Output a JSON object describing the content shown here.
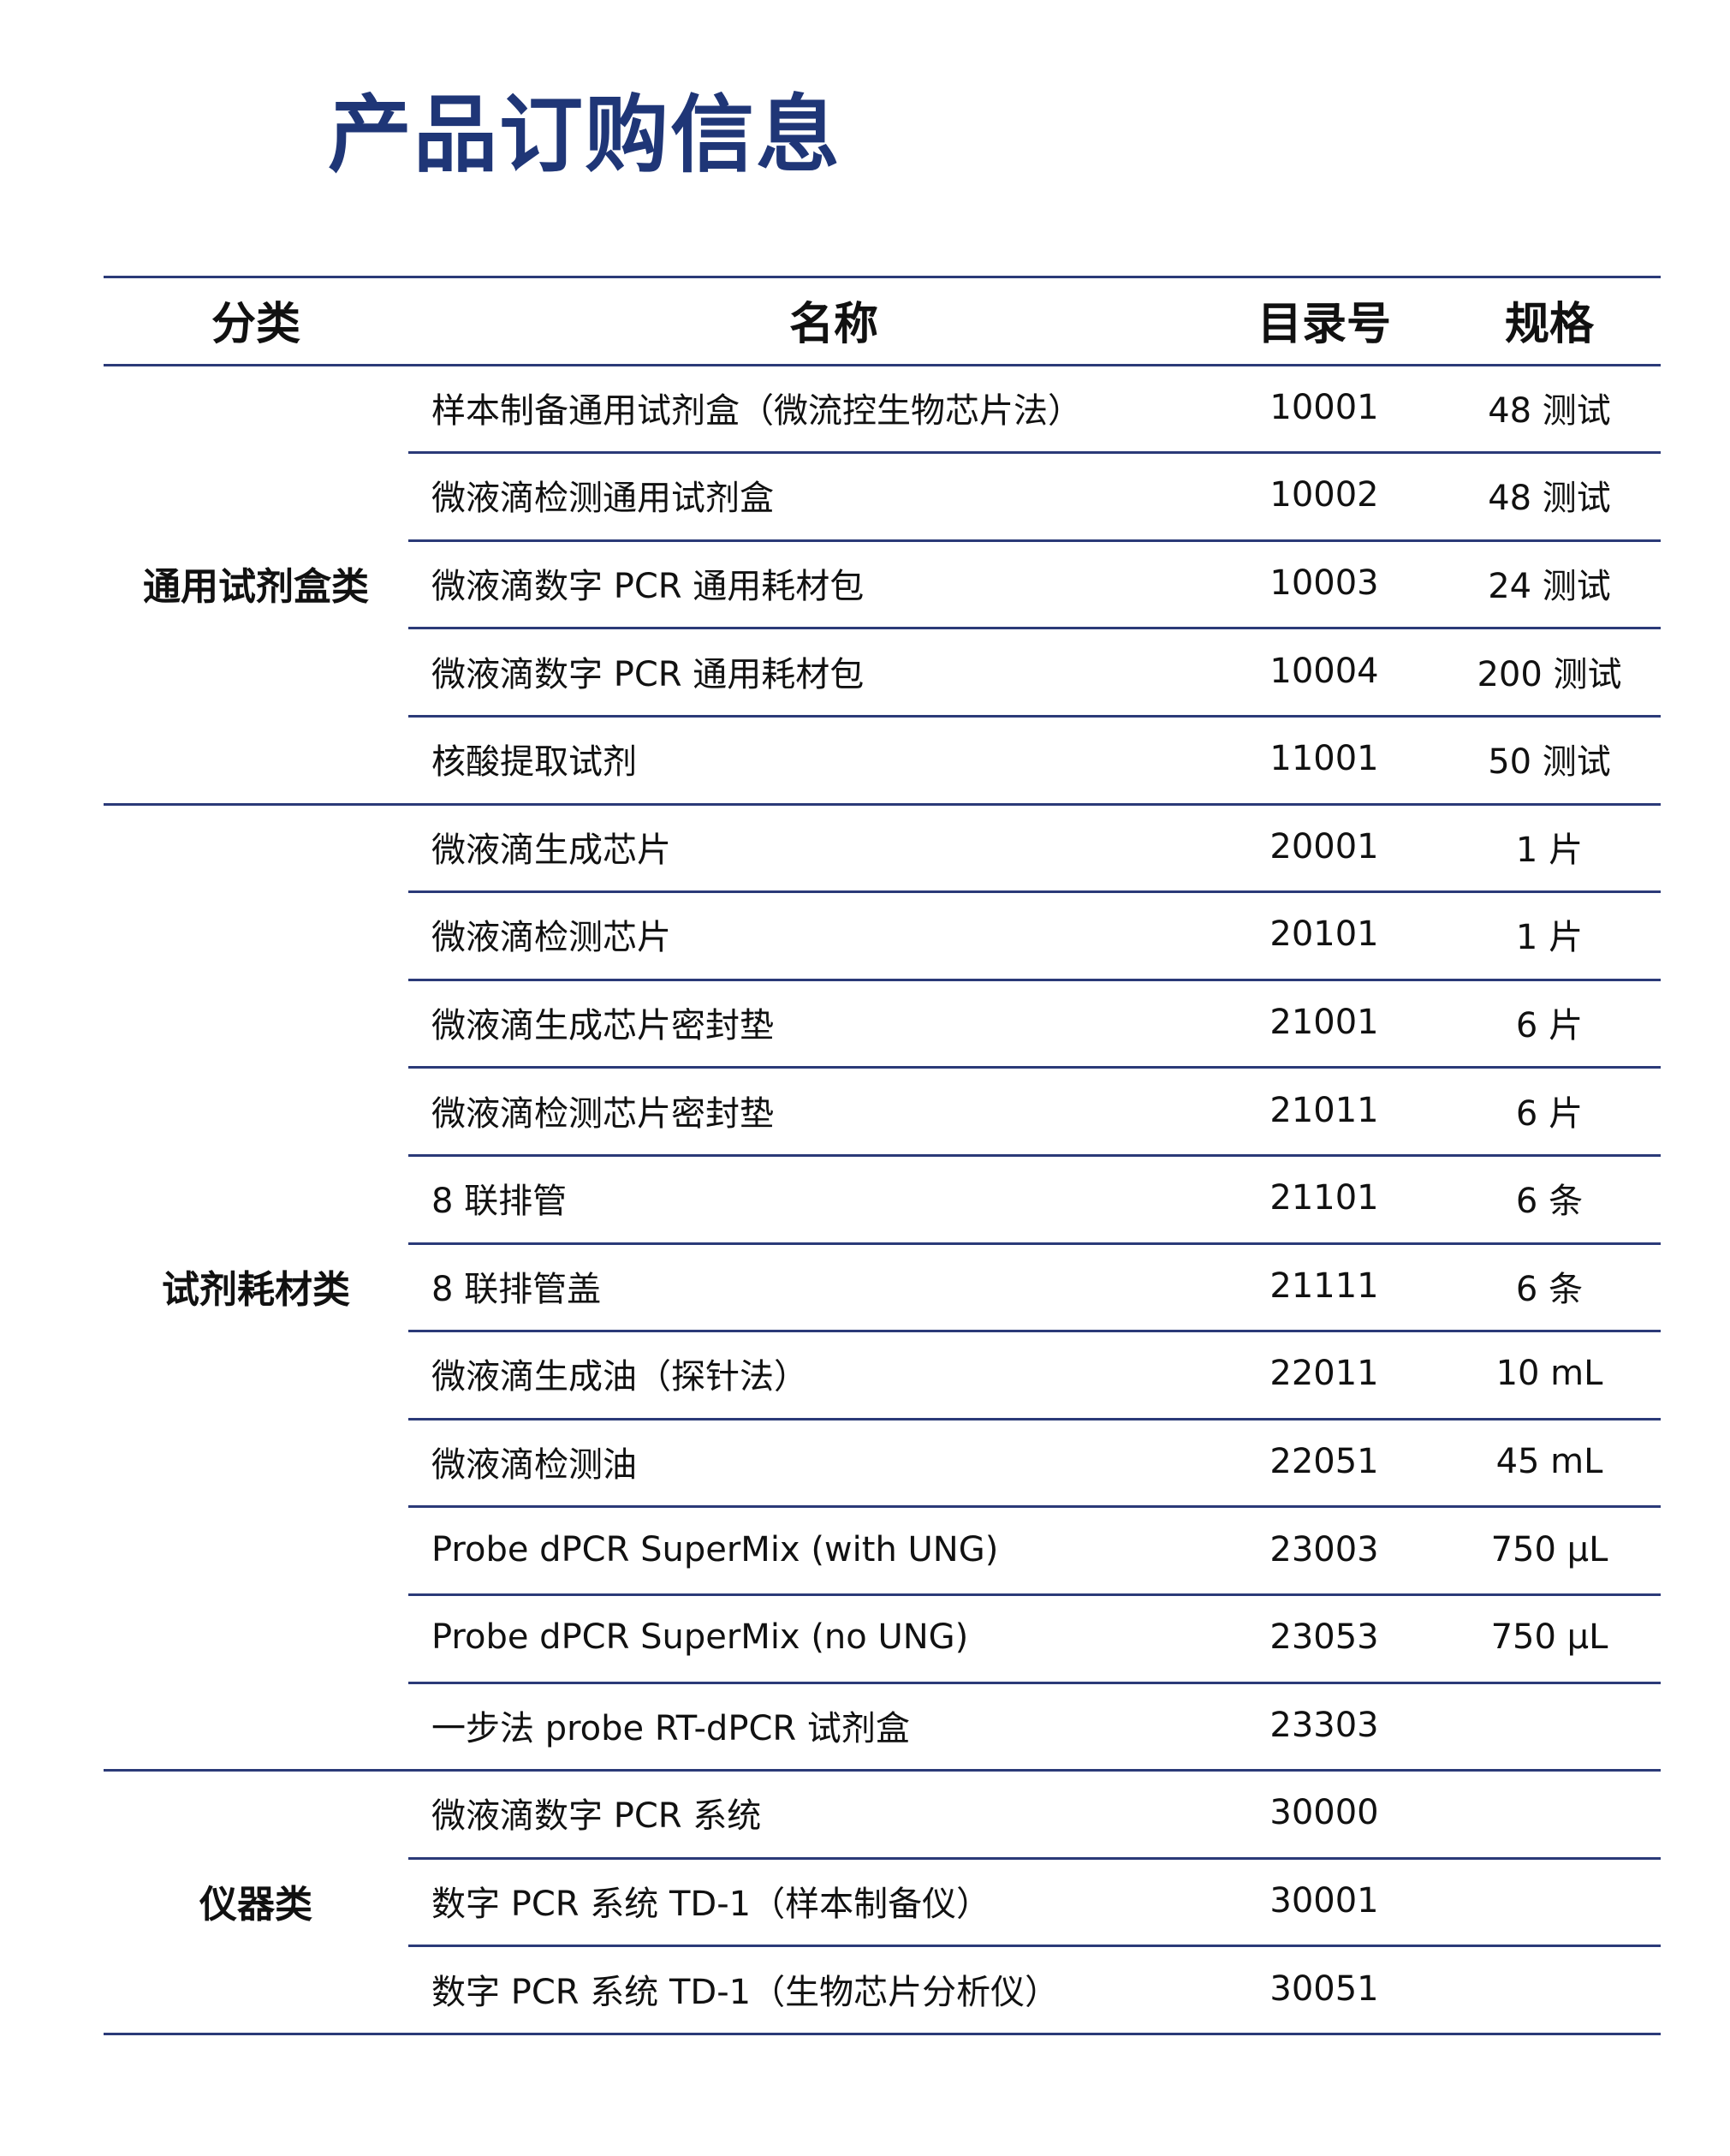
{
  "title": "产品订购信息",
  "colors": {
    "title": "#1f3677",
    "rule": "#2b3a78"
  },
  "table": {
    "headers": [
      "分类",
      "名称",
      "目录号",
      "规格"
    ],
    "groups": [
      {
        "category": "通用试剂盒类",
        "rows": [
          {
            "name": "样本制备通用试剂盒（微流控生物芯片法）",
            "code": "10001",
            "spec": "48 测试"
          },
          {
            "name": "微液滴检测通用试剂盒",
            "code": "10002",
            "spec": "48 测试"
          },
          {
            "name": "微液滴数字 PCR 通用耗材包",
            "code": "10003",
            "spec": "24 测试"
          },
          {
            "name": "微液滴数字 PCR 通用耗材包",
            "code": "10004",
            "spec": "200 测试"
          },
          {
            "name": "核酸提取试剂",
            "code": "11001",
            "spec": "50 测试"
          }
        ]
      },
      {
        "category": "试剂耗材类",
        "rows": [
          {
            "name": "微液滴生成芯片",
            "code": "20001",
            "spec": "1 片"
          },
          {
            "name": "微液滴检测芯片",
            "code": "20101",
            "spec": "1 片"
          },
          {
            "name": "微液滴生成芯片密封垫",
            "code": "21001",
            "spec": "6 片"
          },
          {
            "name": "微液滴检测芯片密封垫",
            "code": "21011",
            "spec": "6 片"
          },
          {
            "name": "8 联排管",
            "code": "21101",
            "spec": "6 条"
          },
          {
            "name": "8 联排管盖",
            "code": "21111",
            "spec": "6 条"
          },
          {
            "name": "微液滴生成油（探针法）",
            "code": "22011",
            "spec": "10 mL"
          },
          {
            "name": "微液滴检测油",
            "code": "22051",
            "spec": "45 mL"
          },
          {
            "name": "Probe dPCR SuperMix (with UNG)",
            "code": "23003",
            "spec": "750 μL"
          },
          {
            "name": "Probe dPCR SuperMix (no UNG)",
            "code": "23053",
            "spec": "750 μL"
          },
          {
            "name": "一步法 probe RT-dPCR 试剂盒",
            "code": "23303",
            "spec": ""
          }
        ]
      },
      {
        "category": "仪器类",
        "rows": [
          {
            "name": "微液滴数字 PCR 系统",
            "code": "30000",
            "spec": ""
          },
          {
            "name": "数字 PCR 系统 TD-1（样本制备仪）",
            "code": "30001",
            "spec": ""
          },
          {
            "name": "数字 PCR 系统 TD-1（生物芯片分析仪）",
            "code": "30051",
            "spec": ""
          }
        ]
      }
    ]
  }
}
